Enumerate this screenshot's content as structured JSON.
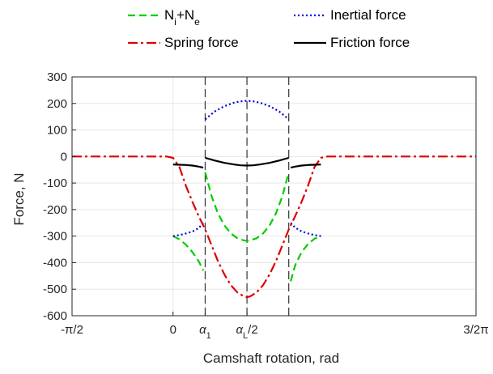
{
  "chart_data": {
    "type": "line",
    "title": "",
    "xlabel": "Camshaft rotation, rad",
    "ylabel": "Force, N",
    "xlim": [
      -1.5708,
      4.7124
    ],
    "ylim": [
      -600,
      300
    ],
    "grid": true,
    "legend_position": "top",
    "y_ticks": [
      300,
      200,
      100,
      0,
      -100,
      -200,
      -300,
      -400,
      -500,
      -600
    ],
    "y_tick_labels": [
      "300",
      "200",
      "100",
      "0",
      "-100",
      "-200",
      "-300",
      "-400",
      "-500",
      "-600"
    ],
    "x_ticks": [
      {
        "value": -1.5708,
        "parts": [
          {
            "t": "-π/2"
          }
        ]
      },
      {
        "value": 0,
        "parts": [
          {
            "t": "0"
          }
        ]
      },
      {
        "value": 0.5,
        "parts": [
          {
            "t": "α",
            "italic": true
          },
          {
            "t": "1",
            "sub": true
          }
        ]
      },
      {
        "value": 1.15,
        "parts": [
          {
            "t": "α",
            "italic": true
          },
          {
            "t": "L",
            "sub": true
          },
          {
            "t": "/2"
          }
        ]
      },
      {
        "value": 4.7124,
        "parts": [
          {
            "t": "3/2π"
          }
        ]
      }
    ],
    "vertical_dashed_lines": [
      0.5,
      1.15,
      1.8
    ],
    "series": [
      {
        "name": "Ni+Ne",
        "legend_parts": [
          {
            "t": "N"
          },
          {
            "t": "i",
            "sub": true
          },
          {
            "t": "+N"
          },
          {
            "t": "e",
            "sub": true
          }
        ],
        "color": "#00cc00",
        "dash": "9 5",
        "segments": [
          [
            [
              0,
              -300
            ],
            [
              0.1,
              -312
            ],
            [
              0.2,
              -332
            ],
            [
              0.3,
              -360
            ],
            [
              0.4,
              -395
            ],
            [
              0.47,
              -430
            ]
          ],
          [
            [
              0.5,
              -60
            ],
            [
              0.6,
              -150
            ],
            [
              0.7,
              -215
            ],
            [
              0.8,
              -260
            ],
            [
              0.9,
              -290
            ],
            [
              1.0,
              -308
            ],
            [
              1.1,
              -316
            ],
            [
              1.15,
              -318
            ],
            [
              1.2,
              -316
            ],
            [
              1.3,
              -308
            ],
            [
              1.4,
              -290
            ],
            [
              1.5,
              -260
            ],
            [
              1.6,
              -215
            ],
            [
              1.7,
              -150
            ],
            [
              1.8,
              -60
            ]
          ],
          [
            [
              1.83,
              -470
            ],
            [
              1.9,
              -410
            ],
            [
              2.0,
              -360
            ],
            [
              2.1,
              -330
            ],
            [
              2.2,
              -310
            ],
            [
              2.3,
              -300
            ]
          ]
        ]
      },
      {
        "name": "Inertial force",
        "color": "#0000dd",
        "dash": "2 3",
        "segments": [
          [
            [
              0,
              -300
            ],
            [
              0.1,
              -296
            ],
            [
              0.2,
              -290
            ],
            [
              0.3,
              -283
            ],
            [
              0.4,
              -270
            ],
            [
              0.47,
              -250
            ]
          ],
          [
            [
              0.5,
              140
            ],
            [
              0.65,
              170
            ],
            [
              0.8,
              190
            ],
            [
              0.95,
              203
            ],
            [
              1.05,
              208
            ],
            [
              1.15,
              210
            ],
            [
              1.25,
              208
            ],
            [
              1.35,
              203
            ],
            [
              1.5,
              190
            ],
            [
              1.65,
              170
            ],
            [
              1.8,
              140
            ]
          ],
          [
            [
              1.83,
              -250
            ],
            [
              1.9,
              -268
            ],
            [
              2.0,
              -282
            ],
            [
              2.1,
              -290
            ],
            [
              2.2,
              -296
            ],
            [
              2.3,
              -300
            ]
          ]
        ]
      },
      {
        "name": "Spring force",
        "color": "#dd0000",
        "dash": "12 4 3 4",
        "segments": [
          [
            [
              -1.5708,
              0
            ],
            [
              -0.5,
              0
            ],
            [
              -0.1,
              0
            ],
            [
              0,
              -5
            ],
            [
              0.1,
              -40
            ],
            [
              0.2,
              -110
            ],
            [
              0.3,
              -170
            ],
            [
              0.4,
              -225
            ],
            [
              0.5,
              -275
            ],
            [
              0.6,
              -335
            ],
            [
              0.7,
              -395
            ],
            [
              0.8,
              -445
            ],
            [
              0.9,
              -485
            ],
            [
              1.0,
              -512
            ],
            [
              1.1,
              -527
            ],
            [
              1.15,
              -530
            ],
            [
              1.2,
              -527
            ],
            [
              1.3,
              -512
            ],
            [
              1.4,
              -485
            ],
            [
              1.5,
              -445
            ],
            [
              1.6,
              -395
            ],
            [
              1.7,
              -335
            ],
            [
              1.8,
              -275
            ],
            [
              1.9,
              -225
            ],
            [
              2.0,
              -170
            ],
            [
              2.1,
              -110
            ],
            [
              2.2,
              -40
            ],
            [
              2.3,
              -5
            ],
            [
              2.4,
              0
            ],
            [
              3.0,
              0
            ],
            [
              4.7124,
              0
            ]
          ]
        ]
      },
      {
        "name": "Friction force",
        "color": "#000000",
        "dash": "",
        "segments": [
          [
            [
              0,
              -30
            ],
            [
              0.1,
              -31
            ],
            [
              0.2,
              -32
            ],
            [
              0.3,
              -34
            ],
            [
              0.4,
              -38
            ],
            [
              0.47,
              -42
            ]
          ],
          [
            [
              0.5,
              -5
            ],
            [
              0.65,
              -15
            ],
            [
              0.8,
              -24
            ],
            [
              0.95,
              -30
            ],
            [
              1.05,
              -33
            ],
            [
              1.15,
              -34
            ],
            [
              1.25,
              -33
            ],
            [
              1.35,
              -30
            ],
            [
              1.5,
              -24
            ],
            [
              1.65,
              -15
            ],
            [
              1.8,
              -5
            ]
          ],
          [
            [
              1.83,
              -42
            ],
            [
              1.9,
              -38
            ],
            [
              2.0,
              -34
            ],
            [
              2.1,
              -32
            ],
            [
              2.2,
              -31
            ],
            [
              2.3,
              -30
            ]
          ]
        ]
      }
    ],
    "legend_layout": [
      [
        "Ni+Ne",
        "Inertial force"
      ],
      [
        "Spring force",
        "Friction force"
      ]
    ]
  }
}
